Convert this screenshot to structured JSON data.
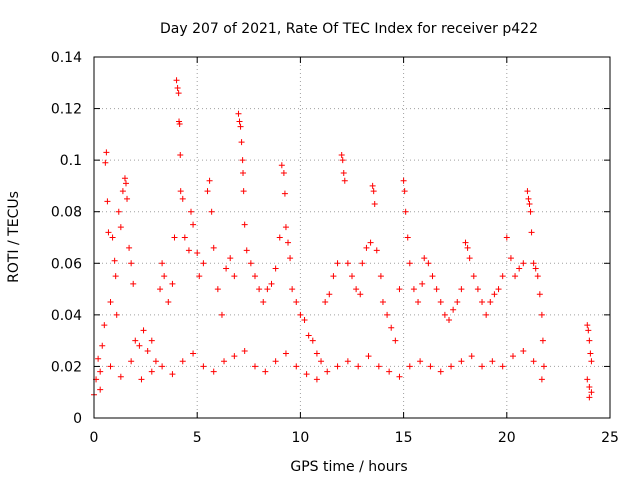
{
  "chart_data": {
    "type": "scatter",
    "title": "Day 207 of 2021, Rate Of TEC Index for receiver p422",
    "xlabel": "GPS time / hours",
    "ylabel": "ROTI / TECUs",
    "xlim": [
      0,
      25
    ],
    "ylim": [
      0,
      0.14
    ],
    "x_ticks": [
      "0",
      "5",
      "10",
      "15",
      "20",
      "25"
    ],
    "y_ticks": [
      "0",
      "0.02",
      "0.04",
      "0.06",
      "0.08",
      "0.1",
      "0.12",
      "0.14"
    ],
    "x_tick_values": [
      0,
      5,
      10,
      15,
      20,
      25
    ],
    "y_tick_values": [
      0,
      0.02,
      0.04,
      0.06,
      0.07999999999999999,
      0.09999999999999999,
      0.12,
      0.14
    ],
    "grid": true,
    "marker": "plus",
    "color": "#ff0000",
    "series": [
      {
        "points": [
          [
            0.0,
            0.009
          ],
          [
            0.1,
            0.015
          ],
          [
            0.2,
            0.023
          ],
          [
            0.3,
            0.011
          ],
          [
            0.4,
            0.028
          ],
          [
            0.5,
            0.036
          ],
          [
            0.55,
            0.099
          ],
          [
            0.6,
            0.103
          ],
          [
            0.65,
            0.084
          ],
          [
            0.7,
            0.072
          ],
          [
            0.8,
            0.045
          ],
          [
            0.9,
            0.07
          ],
          [
            1.0,
            0.061
          ],
          [
            1.05,
            0.055
          ],
          [
            1.1,
            0.04
          ],
          [
            1.2,
            0.08
          ],
          [
            1.3,
            0.074
          ],
          [
            1.4,
            0.088
          ],
          [
            1.5,
            0.093
          ],
          [
            1.55,
            0.091
          ],
          [
            1.6,
            0.085
          ],
          [
            1.7,
            0.066
          ],
          [
            1.8,
            0.06
          ],
          [
            1.9,
            0.052
          ],
          [
            2.0,
            0.03
          ],
          [
            2.2,
            0.028
          ],
          [
            2.4,
            0.034
          ],
          [
            2.6,
            0.026
          ],
          [
            2.8,
            0.03
          ],
          [
            3.0,
            0.022
          ],
          [
            3.2,
            0.05
          ],
          [
            3.3,
            0.06
          ],
          [
            3.4,
            0.055
          ],
          [
            3.6,
            0.045
          ],
          [
            3.8,
            0.052
          ],
          [
            3.9,
            0.07
          ],
          [
            4.0,
            0.131
          ],
          [
            4.05,
            0.128
          ],
          [
            4.1,
            0.126
          ],
          [
            4.12,
            0.115
          ],
          [
            4.15,
            0.114
          ],
          [
            4.18,
            0.102
          ],
          [
            4.2,
            0.088
          ],
          [
            4.3,
            0.085
          ],
          [
            4.4,
            0.07
          ],
          [
            4.6,
            0.065
          ],
          [
            4.7,
            0.08
          ],
          [
            4.8,
            0.075
          ],
          [
            5.0,
            0.064
          ],
          [
            5.1,
            0.055
          ],
          [
            5.3,
            0.06
          ],
          [
            5.5,
            0.088
          ],
          [
            5.6,
            0.092
          ],
          [
            5.7,
            0.08
          ],
          [
            5.8,
            0.066
          ],
          [
            6.0,
            0.05
          ],
          [
            6.2,
            0.04
          ],
          [
            6.4,
            0.058
          ],
          [
            6.6,
            0.062
          ],
          [
            6.8,
            0.055
          ],
          [
            7.0,
            0.118
          ],
          [
            7.05,
            0.115
          ],
          [
            7.1,
            0.113
          ],
          [
            7.15,
            0.107
          ],
          [
            7.2,
            0.1
          ],
          [
            7.22,
            0.095
          ],
          [
            7.25,
            0.088
          ],
          [
            7.3,
            0.075
          ],
          [
            7.4,
            0.065
          ],
          [
            7.6,
            0.06
          ],
          [
            7.8,
            0.055
          ],
          [
            8.0,
            0.05
          ],
          [
            8.2,
            0.045
          ],
          [
            8.4,
            0.05
          ],
          [
            8.6,
            0.052
          ],
          [
            8.8,
            0.058
          ],
          [
            9.0,
            0.07
          ],
          [
            9.1,
            0.098
          ],
          [
            9.2,
            0.095
          ],
          [
            9.25,
            0.087
          ],
          [
            9.3,
            0.074
          ],
          [
            9.4,
            0.068
          ],
          [
            9.5,
            0.062
          ],
          [
            9.6,
            0.05
          ],
          [
            9.8,
            0.045
          ],
          [
            10.0,
            0.04
          ],
          [
            10.2,
            0.038
          ],
          [
            10.4,
            0.032
          ],
          [
            10.6,
            0.03
          ],
          [
            10.8,
            0.025
          ],
          [
            11.0,
            0.022
          ],
          [
            11.2,
            0.045
          ],
          [
            11.4,
            0.048
          ],
          [
            11.6,
            0.055
          ],
          [
            11.8,
            0.06
          ],
          [
            12.0,
            0.102
          ],
          [
            12.05,
            0.1
          ],
          [
            12.1,
            0.095
          ],
          [
            12.15,
            0.092
          ],
          [
            12.3,
            0.06
          ],
          [
            12.5,
            0.055
          ],
          [
            12.7,
            0.05
          ],
          [
            12.9,
            0.048
          ],
          [
            13.0,
            0.06
          ],
          [
            13.2,
            0.066
          ],
          [
            13.4,
            0.068
          ],
          [
            13.5,
            0.09
          ],
          [
            13.55,
            0.088
          ],
          [
            13.6,
            0.083
          ],
          [
            13.7,
            0.065
          ],
          [
            13.9,
            0.055
          ],
          [
            14.0,
            0.045
          ],
          [
            14.2,
            0.04
          ],
          [
            14.4,
            0.035
          ],
          [
            14.6,
            0.03
          ],
          [
            14.8,
            0.05
          ],
          [
            15.0,
            0.092
          ],
          [
            15.05,
            0.088
          ],
          [
            15.1,
            0.08
          ],
          [
            15.2,
            0.07
          ],
          [
            15.3,
            0.06
          ],
          [
            15.5,
            0.05
          ],
          [
            15.7,
            0.045
          ],
          [
            15.9,
            0.052
          ],
          [
            16.0,
            0.062
          ],
          [
            16.2,
            0.06
          ],
          [
            16.4,
            0.055
          ],
          [
            16.6,
            0.05
          ],
          [
            16.8,
            0.045
          ],
          [
            17.0,
            0.04
          ],
          [
            17.2,
            0.038
          ],
          [
            17.4,
            0.042
          ],
          [
            17.6,
            0.045
          ],
          [
            17.8,
            0.05
          ],
          [
            18.0,
            0.068
          ],
          [
            18.1,
            0.066
          ],
          [
            18.2,
            0.062
          ],
          [
            18.4,
            0.055
          ],
          [
            18.6,
            0.05
          ],
          [
            18.8,
            0.045
          ],
          [
            19.0,
            0.04
          ],
          [
            19.2,
            0.045
          ],
          [
            19.4,
            0.048
          ],
          [
            19.6,
            0.05
          ],
          [
            19.8,
            0.055
          ],
          [
            20.0,
            0.07
          ],
          [
            20.2,
            0.062
          ],
          [
            20.4,
            0.055
          ],
          [
            20.6,
            0.058
          ],
          [
            20.8,
            0.06
          ],
          [
            21.0,
            0.088
          ],
          [
            21.05,
            0.085
          ],
          [
            21.1,
            0.083
          ],
          [
            21.15,
            0.08
          ],
          [
            21.2,
            0.072
          ],
          [
            21.3,
            0.06
          ],
          [
            21.4,
            0.058
          ],
          [
            21.5,
            0.055
          ],
          [
            21.6,
            0.048
          ],
          [
            21.7,
            0.04
          ],
          [
            21.75,
            0.03
          ],
          [
            21.8,
            0.02
          ],
          [
            23.9,
            0.036
          ],
          [
            23.95,
            0.034
          ],
          [
            24.0,
            0.03
          ],
          [
            24.05,
            0.025
          ],
          [
            24.1,
            0.022
          ],
          [
            23.9,
            0.015
          ],
          [
            24.0,
            0.012
          ],
          [
            24.1,
            0.01
          ],
          [
            24.0,
            0.008
          ],
          [
            0.3,
            0.018
          ],
          [
            0.8,
            0.02
          ],
          [
            1.3,
            0.016
          ],
          [
            1.8,
            0.022
          ],
          [
            2.3,
            0.015
          ],
          [
            2.8,
            0.018
          ],
          [
            3.3,
            0.02
          ],
          [
            3.8,
            0.017
          ],
          [
            4.3,
            0.022
          ],
          [
            4.8,
            0.025
          ],
          [
            5.3,
            0.02
          ],
          [
            5.8,
            0.018
          ],
          [
            6.3,
            0.022
          ],
          [
            6.8,
            0.024
          ],
          [
            7.3,
            0.026
          ],
          [
            7.8,
            0.02
          ],
          [
            8.3,
            0.018
          ],
          [
            8.8,
            0.022
          ],
          [
            9.3,
            0.025
          ],
          [
            9.8,
            0.02
          ],
          [
            10.3,
            0.017
          ],
          [
            10.8,
            0.015
          ],
          [
            11.3,
            0.018
          ],
          [
            11.8,
            0.02
          ],
          [
            12.3,
            0.022
          ],
          [
            12.8,
            0.02
          ],
          [
            13.3,
            0.024
          ],
          [
            13.8,
            0.02
          ],
          [
            14.3,
            0.018
          ],
          [
            14.8,
            0.016
          ],
          [
            15.3,
            0.02
          ],
          [
            15.8,
            0.022
          ],
          [
            16.3,
            0.02
          ],
          [
            16.8,
            0.018
          ],
          [
            17.3,
            0.02
          ],
          [
            17.8,
            0.022
          ],
          [
            18.3,
            0.024
          ],
          [
            18.8,
            0.02
          ],
          [
            19.3,
            0.022
          ],
          [
            19.8,
            0.02
          ],
          [
            20.3,
            0.024
          ],
          [
            20.8,
            0.026
          ],
          [
            21.3,
            0.022
          ],
          [
            21.7,
            0.015
          ]
        ]
      }
    ]
  }
}
